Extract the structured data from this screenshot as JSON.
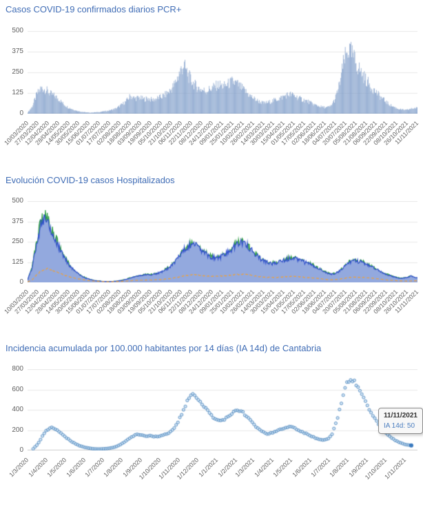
{
  "colors": {
    "title": "#3f6cb5",
    "axis_text": "#606060",
    "grid": "#e8e8e8",
    "bar": "rgba(127,158,201,0.8)",
    "hosp_blue_line": "#3352cc",
    "hosp_blue_fill": "#93a9de",
    "hosp_green_line": "#2f9e44",
    "hosp_green_fill": "#63b06c",
    "hosp_orange_line": "#efa23b",
    "dot_stroke": "rgba(88,141,192,0.9)",
    "dot_fill": "rgba(173,207,236,0.55)",
    "last_dot": "#3a7abf",
    "tooltip_value": "#4a7dbf"
  },
  "chart_data": [
    {
      "id": "daily_pcr_cases",
      "type": "bar",
      "title": "Casos COVID-19 confirmados diarios PCR+",
      "x_start": "10/03/2020",
      "x_end": "11/11/2021",
      "x_labels": [
        "10/03/2020",
        "27/03/2020",
        "12/04/2020",
        "28/04/2020",
        "14/05/2020",
        "30/05/2020",
        "15/06/2020",
        "01/07/2020",
        "17/07/2020",
        "02/08/2020",
        "18/08/2020",
        "03/09/2020",
        "19/09/2020",
        "05/10/2020",
        "21/10/2020",
        "06/11/2020",
        "22/11/2020",
        "08/12/2020",
        "24/12/2020",
        "09/01/2021",
        "25/01/2021",
        "10/02/2021",
        "26/02/2021",
        "14/03/2021",
        "30/03/2021",
        "15/04/2021",
        "01/05/2021",
        "17/05/2021",
        "02/06/2021",
        "18/06/2021",
        "04/07/2021",
        "20/07/2021",
        "05/08/2021",
        "21/08/2021",
        "06/09/2021",
        "22/09/2021",
        "08/10/2021",
        "26/10/2021",
        "11/11/2021"
      ],
      "ylim": [
        0,
        500
      ],
      "y_ticks": [
        0,
        125,
        250,
        375,
        500
      ],
      "total_days": 612,
      "sample_step_days": 7,
      "values": [
        8,
        45,
        120,
        160,
        150,
        125,
        110,
        90,
        60,
        40,
        28,
        18,
        12,
        8,
        6,
        8,
        10,
        14,
        18,
        25,
        35,
        55,
        75,
        110,
        95,
        100,
        90,
        95,
        85,
        95,
        105,
        120,
        145,
        185,
        250,
        305,
        240,
        195,
        165,
        150,
        140,
        155,
        170,
        180,
        170,
        185,
        200,
        185,
        160,
        135,
        110,
        90,
        75,
        65,
        70,
        80,
        90,
        100,
        115,
        120,
        110,
        95,
        85,
        75,
        60,
        50,
        42,
        38,
        45,
        90,
        180,
        330,
        400,
        360,
        300,
        250,
        210,
        170,
        140,
        110,
        85,
        60,
        45,
        32,
        25,
        22,
        30,
        35
      ]
    },
    {
      "id": "hospitalized_evolution",
      "type": "area",
      "title": "Evolución COVID-19 casos  Hospitalizados",
      "x_start": "10/03/2020",
      "x_end": "11/11/2021",
      "x_labels": [
        "10/03/2020",
        "27/03/2020",
        "12/04/2020",
        "28/04/2020",
        "14/05/2020",
        "30/05/2020",
        "15/06/2020",
        "01/07/2020",
        "17/07/2020",
        "02/08/2020",
        "18/08/2020",
        "03/09/2020",
        "19/09/2020",
        "05/10/2020",
        "21/10/2020",
        "06/11/2020",
        "22/11/2020",
        "08/12/2020",
        "24/12/2020",
        "09/01/2021",
        "25/01/2021",
        "10/02/2021",
        "26/02/2021",
        "14/03/2021",
        "30/03/2021",
        "15/04/2021",
        "01/05/2021",
        "17/05/2021",
        "02/06/2021",
        "18/06/2021",
        "04/07/2021",
        "20/07/2021",
        "05/08/2021",
        "21/08/2021",
        "06/09/2021",
        "22/09/2021",
        "08/10/2021",
        "26/10/2021",
        "11/11/2021"
      ],
      "ylim": [
        0,
        500
      ],
      "y_ticks": [
        0,
        125,
        250,
        375,
        500
      ],
      "total_days": 612,
      "sample_step_days": 7,
      "series": [
        {
          "id": "green",
          "values": [
            15,
            95,
            245,
            385,
            405,
            352,
            290,
            228,
            166,
            124,
            85,
            60,
            40,
            28,
            18,
            12,
            8,
            6,
            5,
            6,
            8,
            12,
            18,
            28,
            35,
            40,
            45,
            50,
            48,
            55,
            65,
            80,
            95,
            120,
            160,
            200,
            225,
            235,
            220,
            195,
            175,
            160,
            150,
            155,
            165,
            185,
            210,
            240,
            250,
            235,
            205,
            175,
            150,
            130,
            120,
            115,
            120,
            130,
            140,
            150,
            145,
            135,
            125,
            115,
            105,
            90,
            75,
            60,
            50,
            55,
            70,
            95,
            120,
            135,
            130,
            125,
            115,
            100,
            85,
            70,
            55,
            45,
            35,
            28,
            25,
            30,
            40,
            28
          ]
        },
        {
          "id": "blue",
          "values": [
            15,
            90,
            230,
            360,
            390,
            340,
            280,
            220,
            160,
            120,
            85,
            60,
            40,
            28,
            18,
            12,
            8,
            6,
            5,
            6,
            8,
            12,
            18,
            28,
            35,
            40,
            45,
            50,
            48,
            55,
            65,
            80,
            95,
            120,
            160,
            200,
            225,
            235,
            220,
            195,
            175,
            160,
            150,
            155,
            165,
            185,
            210,
            240,
            250,
            235,
            205,
            175,
            150,
            130,
            120,
            115,
            120,
            130,
            140,
            150,
            145,
            135,
            125,
            115,
            105,
            90,
            75,
            60,
            50,
            55,
            70,
            95,
            120,
            135,
            130,
            125,
            115,
            100,
            85,
            70,
            55,
            45,
            35,
            28,
            25,
            30,
            40,
            28
          ]
        },
        {
          "id": "orange",
          "values": [
            3,
            15,
            45,
            70,
            85,
            80,
            70,
            60,
            48,
            38,
            30,
            24,
            18,
            14,
            10,
            8,
            6,
            5,
            4,
            4,
            5,
            6,
            8,
            10,
            12,
            13,
            14,
            15,
            15,
            16,
            18,
            20,
            24,
            28,
            34,
            40,
            44,
            46,
            45,
            42,
            40,
            38,
            37,
            38,
            40,
            43,
            46,
            49,
            50,
            48,
            44,
            40,
            36,
            33,
            31,
            30,
            31,
            33,
            35,
            36,
            35,
            33,
            31,
            29,
            27,
            24,
            21,
            18,
            16,
            17,
            20,
            25,
            30,
            33,
            32,
            31,
            29,
            26,
            23,
            20,
            17,
            14,
            12,
            10,
            9,
            8,
            9,
            10
          ]
        }
      ]
    },
    {
      "id": "cumulative_incidence_14d",
      "type": "scatter",
      "title": "Incidencia acumulada por 100.000 habitantes por 14 días (IA 14d) de Cantabria",
      "x_start": "1/3/2020",
      "x_end": "11/11/2021",
      "x_labels": [
        "1/3/2020",
        "1/4/2020",
        "1/5/2020",
        "1/6/2020",
        "1/7/2020",
        "1/8/2020",
        "1/9/2020",
        "1/10/2020",
        "1/11/2020",
        "1/12/2020",
        "1/1/2021",
        "1/2/2021",
        "1/3/2021",
        "1/4/2021",
        "1/5/2021",
        "1/6/2021",
        "1/7/2021",
        "1/8/2021",
        "1/9/2021",
        "1/10/2021",
        "1/11/2021"
      ],
      "tick_day_offsets": [
        0,
        31,
        61,
        92,
        122,
        153,
        184,
        214,
        245,
        275,
        306,
        337,
        365,
        396,
        426,
        457,
        487,
        518,
        549,
        579,
        610
      ],
      "domain_days": 630,
      "data_start_day": 9,
      "ylim": [
        0,
        800
      ],
      "y_ticks": [
        0,
        200,
        400,
        600,
        800
      ],
      "sample_step_days": 7,
      "values": [
        15,
        60,
        130,
        190,
        225,
        215,
        185,
        150,
        115,
        85,
        60,
        42,
        30,
        22,
        16,
        14,
        15,
        18,
        25,
        35,
        55,
        80,
        110,
        140,
        160,
        150,
        140,
        145,
        135,
        140,
        150,
        165,
        195,
        250,
        330,
        430,
        520,
        550,
        520,
        460,
        400,
        350,
        310,
        290,
        300,
        330,
        370,
        400,
        390,
        350,
        300,
        250,
        210,
        180,
        165,
        170,
        185,
        205,
        225,
        235,
        225,
        205,
        185,
        165,
        145,
        125,
        110,
        100,
        110,
        160,
        280,
        450,
        620,
        700,
        680,
        610,
        530,
        450,
        370,
        300,
        240,
        190,
        150,
        115,
        90,
        70,
        58,
        52
      ],
      "last_point": {
        "day": 620,
        "value": 50
      },
      "tooltip": {
        "date": "11/11/2021",
        "text": "IA 14d: 50"
      }
    }
  ]
}
